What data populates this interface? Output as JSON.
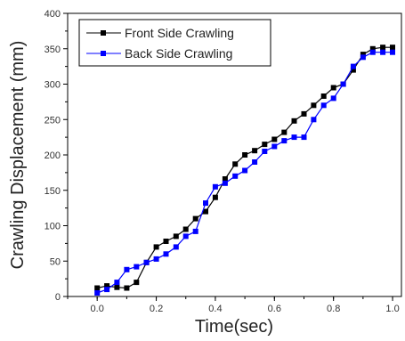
{
  "chart_data": {
    "type": "line",
    "title": "",
    "xlabel": "Time(sec)",
    "ylabel": "Crawling Displacement (mm)",
    "xlim": [
      -0.1,
      1.03
    ],
    "ylim": [
      0,
      400
    ],
    "xticks": [
      "0.0",
      "0.2",
      "0.4",
      "0.6",
      "0.8",
      "1.0"
    ],
    "yticks": [
      "0",
      "50",
      "100",
      "150",
      "200",
      "250",
      "300",
      "350",
      "400"
    ],
    "xtick_values": [
      0.0,
      0.2,
      0.4,
      0.6,
      0.8,
      1.0
    ],
    "ytick_values": [
      0,
      50,
      100,
      150,
      200,
      250,
      300,
      350,
      400
    ],
    "grid": false,
    "legend_position": "top-left",
    "series": [
      {
        "name": "Front Side Crawling",
        "color": "#000000",
        "marker": "square",
        "x": [
          0.0,
          0.033,
          0.067,
          0.1,
          0.133,
          0.167,
          0.2,
          0.233,
          0.267,
          0.3,
          0.333,
          0.367,
          0.4,
          0.433,
          0.467,
          0.5,
          0.533,
          0.567,
          0.6,
          0.633,
          0.667,
          0.7,
          0.733,
          0.767,
          0.8,
          0.833,
          0.867,
          0.9,
          0.933,
          0.967,
          1.0
        ],
        "y": [
          12,
          15,
          13,
          12,
          20,
          48,
          70,
          78,
          85,
          95,
          110,
          120,
          140,
          166,
          187,
          200,
          206,
          215,
          222,
          232,
          248,
          258,
          270,
          283,
          295,
          300,
          320,
          342,
          350,
          352,
          352
        ]
      },
      {
        "name": "Back Side Crawling",
        "color": "#0000ff",
        "marker": "square",
        "x": [
          0.0,
          0.033,
          0.067,
          0.1,
          0.133,
          0.167,
          0.2,
          0.233,
          0.267,
          0.3,
          0.333,
          0.367,
          0.4,
          0.433,
          0.467,
          0.5,
          0.533,
          0.567,
          0.6,
          0.633,
          0.667,
          0.7,
          0.733,
          0.767,
          0.8,
          0.833,
          0.867,
          0.9,
          0.933,
          0.967,
          1.0
        ],
        "y": [
          5,
          10,
          20,
          38,
          42,
          48,
          53,
          60,
          70,
          85,
          92,
          132,
          155,
          160,
          170,
          178,
          190,
          205,
          212,
          220,
          225,
          225,
          250,
          270,
          280,
          300,
          325,
          338,
          345,
          345,
          345
        ]
      }
    ]
  }
}
